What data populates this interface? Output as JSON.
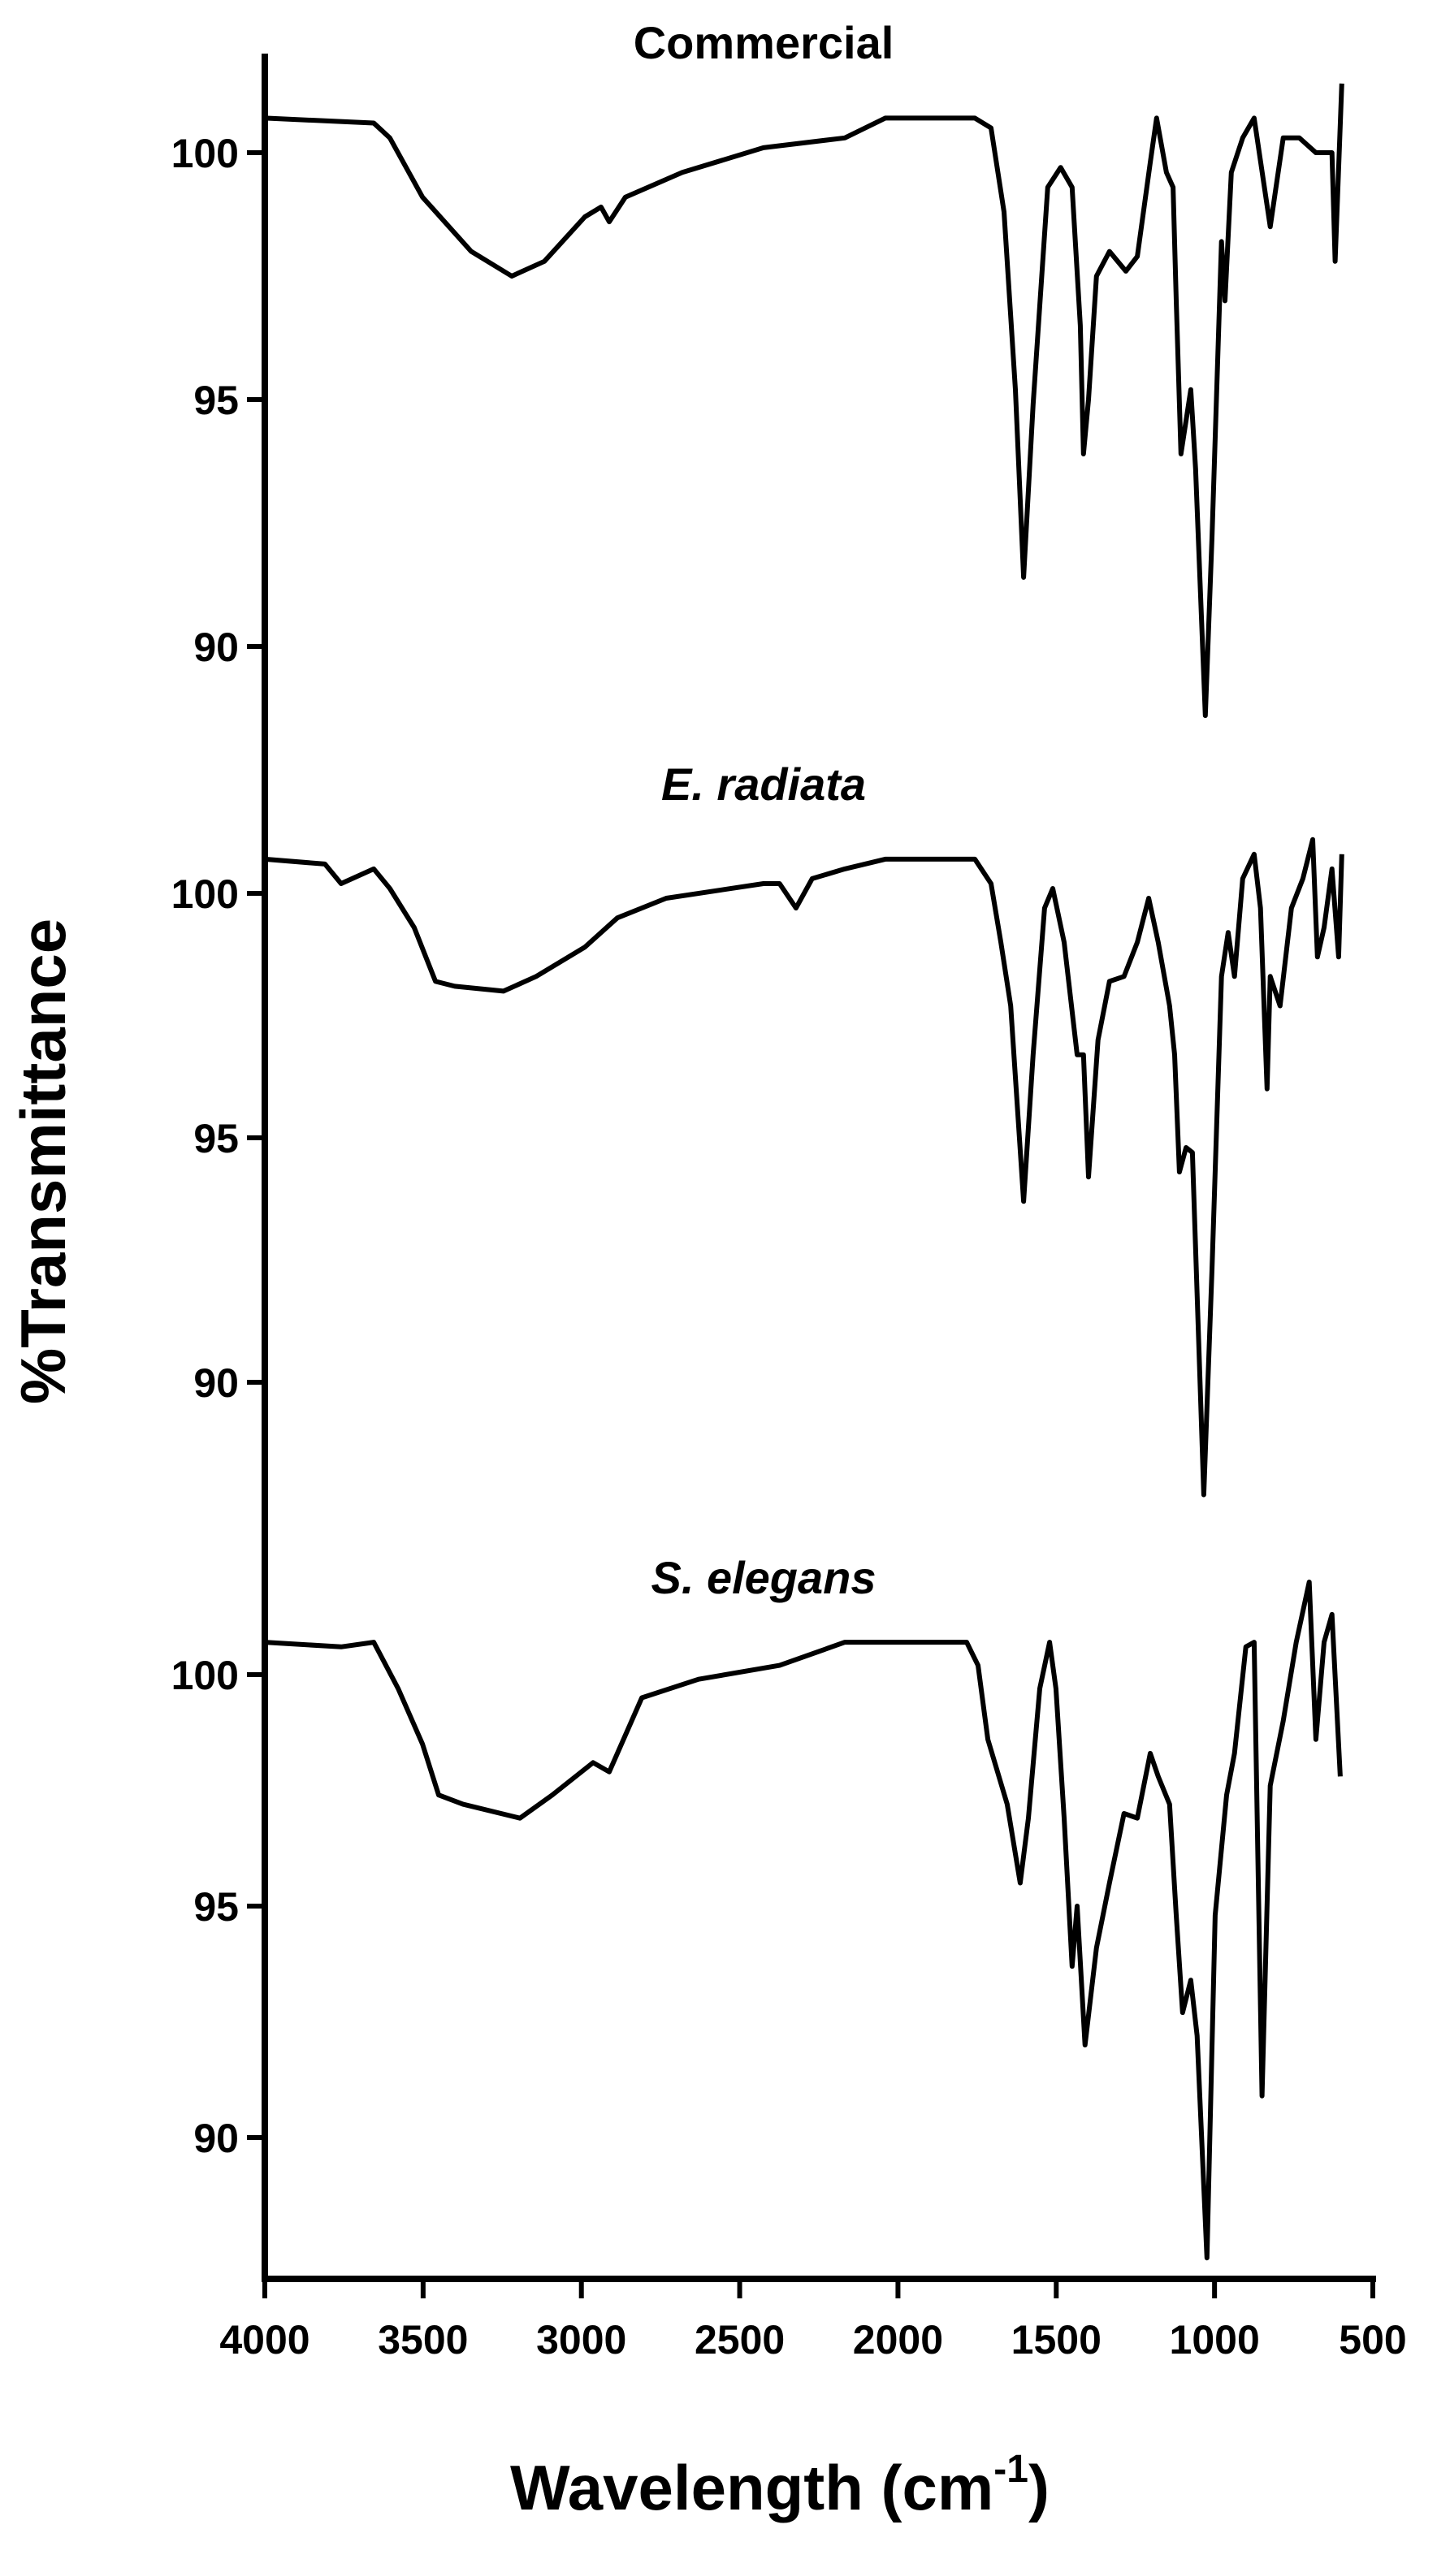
{
  "chart_data": {
    "type": "line",
    "title": "",
    "xlabel": "Wavelength (cm-1)",
    "xlabel_main": "Wavelength (cm",
    "xlabel_sup": "-1",
    "xlabel_close": ")",
    "ylabel": "%Transmittance",
    "xlim": [
      4000,
      500
    ],
    "x_ticks": [
      4000,
      3500,
      3000,
      2500,
      2000,
      1500,
      1000,
      500
    ],
    "grid": false,
    "legend": "none (panel labels above each trace)",
    "panels": [
      {
        "name": "Commercial",
        "italic": false,
        "y_ticks": [
          100,
          95,
          90
        ],
        "ylim": [
          88.3,
          102.2
        ],
        "x": [
          4000,
          3656,
          3605,
          3502,
          3348,
          3220,
          3117,
          2989,
          2938,
          2912,
          2861,
          2681,
          2425,
          2168,
          2040,
          1757,
          1706,
          1665,
          1629,
          1603,
          1573,
          1527,
          1486,
          1450,
          1424,
          1414,
          1398,
          1373,
          1332,
          1280,
          1244,
          1203,
          1183,
          1152,
          1131,
          1121,
          1106,
          1075,
          1060,
          1029,
          1008,
          978,
          967,
          947,
          911,
          875,
          824,
          783,
          732,
          680,
          629,
          619,
          598
        ],
        "y": [
          100.7,
          100.6,
          100.3,
          99.1,
          98.0,
          97.5,
          97.8,
          98.7,
          98.9,
          98.6,
          99.1,
          99.6,
          100.1,
          100.3,
          100.7,
          100.7,
          100.5,
          98.8,
          95.2,
          91.4,
          94.9,
          99.3,
          99.7,
          99.3,
          96.5,
          93.9,
          95.0,
          97.5,
          98.0,
          97.6,
          97.9,
          99.8,
          100.7,
          99.6,
          99.3,
          97.0,
          93.9,
          95.2,
          93.6,
          88.6,
          92.2,
          98.2,
          97.0,
          99.6,
          100.3,
          100.7,
          98.5,
          100.3,
          100.3,
          100.0,
          100.0,
          97.8,
          101.4
        ]
      },
      {
        "name": "E. radiata",
        "italic": true,
        "y_ticks": [
          100,
          95,
          90
        ],
        "ylim": [
          87.6,
          102.2
        ],
        "x": [
          4000,
          3810,
          3759,
          3656,
          3605,
          3528,
          3461,
          3400,
          3246,
          3143,
          2989,
          2886,
          2732,
          2425,
          2374,
          2322,
          2271,
          2168,
          2040,
          1757,
          1706,
          1675,
          1644,
          1603,
          1573,
          1537,
          1511,
          1475,
          1434,
          1414,
          1398,
          1368,
          1332,
          1286,
          1244,
          1208,
          1178,
          1142,
          1126,
          1111,
          1090,
          1070,
          1034,
          1008,
          978,
          957,
          937,
          911,
          875,
          855,
          834,
          824,
          793,
          757,
          721,
          690,
          675,
          654,
          629,
          608,
          598
        ],
        "y": [
          100.7,
          100.6,
          100.2,
          100.5,
          100.1,
          99.3,
          98.2,
          98.1,
          98.0,
          98.3,
          98.9,
          99.5,
          99.9,
          100.2,
          100.2,
          99.7,
          100.3,
          100.5,
          100.7,
          100.7,
          100.2,
          99.0,
          97.7,
          93.7,
          96.7,
          99.7,
          100.1,
          99.0,
          96.7,
          96.7,
          94.2,
          97.0,
          98.2,
          98.3,
          99.0,
          99.9,
          99.0,
          97.7,
          96.7,
          94.3,
          94.8,
          94.7,
          87.7,
          92.3,
          98.3,
          99.2,
          98.3,
          100.3,
          100.8,
          99.7,
          96.0,
          98.3,
          97.7,
          99.7,
          100.3,
          101.1,
          98.7,
          99.3,
          100.5,
          98.7,
          100.8
        ]
      },
      {
        "name": "S. elegans",
        "italic": true,
        "y_ticks": [
          100,
          95,
          90
        ],
        "ylim": [
          87.4,
          102.5
        ],
        "x": [
          4000,
          3759,
          3656,
          3579,
          3502,
          3451,
          3374,
          3194,
          3092,
          2963,
          2912,
          2809,
          2630,
          2374,
          2168,
          1963,
          1783,
          1747,
          1716,
          1655,
          1614,
          1588,
          1552,
          1521,
          1501,
          1475,
          1450,
          1434,
          1409,
          1373,
          1332,
          1286,
          1244,
          1203,
          1178,
          1142,
          1121,
          1101,
          1075,
          1055,
          1024,
          998,
          962,
          937,
          901,
          875,
          850,
          824,
          783,
          742,
          701,
          680,
          654,
          629,
          603
        ],
        "y": [
          100.7,
          100.6,
          100.7,
          99.7,
          98.5,
          97.4,
          97.2,
          96.9,
          97.4,
          98.1,
          97.9,
          99.5,
          99.9,
          100.2,
          100.7,
          100.7,
          100.7,
          100.2,
          98.6,
          97.2,
          95.5,
          96.9,
          99.7,
          100.7,
          99.7,
          96.9,
          93.7,
          95.0,
          92.0,
          94.1,
          95.5,
          97.0,
          96.9,
          98.3,
          97.8,
          97.2,
          94.8,
          92.7,
          93.4,
          92.2,
          87.4,
          94.8,
          97.4,
          98.3,
          100.6,
          100.7,
          90.9,
          97.6,
          99.0,
          100.7,
          102.0,
          98.6,
          100.7,
          101.3,
          97.8
        ]
      }
    ]
  },
  "labels": {
    "panel_titles": [
      "Commercial",
      "E. radiata",
      "S. elegans"
    ],
    "y_axis_title": "%Transmittance",
    "x_axis_title_main": "Wavelength (cm",
    "x_axis_title_sup": "-1",
    "x_axis_title_close": ")"
  },
  "colors": {
    "line": "#000000",
    "axis": "#000000",
    "background": "#ffffff"
  }
}
